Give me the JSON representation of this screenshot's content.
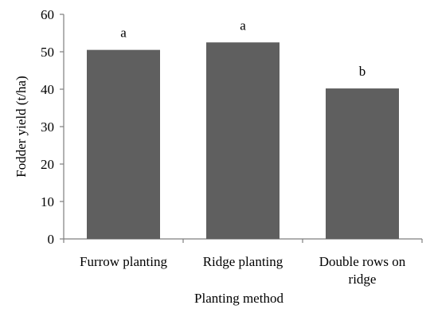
{
  "chart_data": {
    "type": "bar",
    "categories": [
      [
        "Furrow planting"
      ],
      [
        "Ridge planting"
      ],
      [
        "Double rows on",
        "ridge"
      ]
    ],
    "values": [
      50.5,
      52.5,
      40.2
    ],
    "data_labels": [
      "a",
      "a",
      "b"
    ],
    "xlabel": "Planting method",
    "ylabel": "Fodder yield  (t/ha)",
    "ylim": [
      0,
      60
    ],
    "yticks": [
      0,
      10,
      20,
      30,
      40,
      50,
      60
    ],
    "grid": false,
    "legend": "none",
    "bar_color": "#5f5f5f"
  }
}
